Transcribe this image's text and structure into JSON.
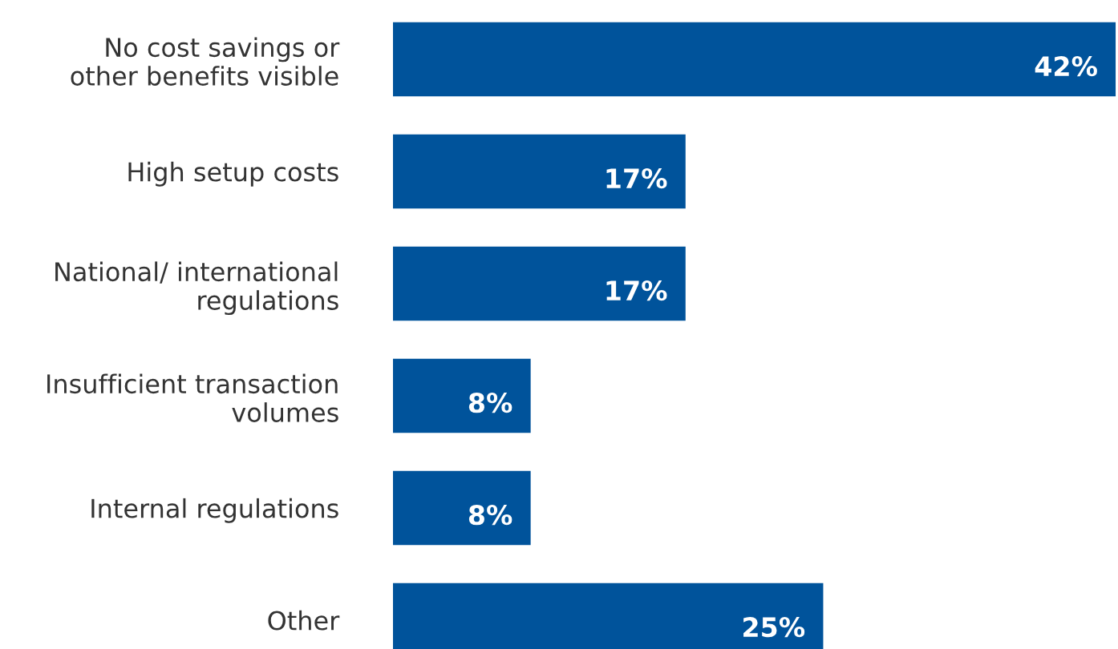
{
  "chart_data": {
    "type": "bar",
    "orientation": "horizontal",
    "categories": [
      "No cost savings or\nother benefits visible",
      "High setup costs",
      "National/ international\nregulations",
      "Insufficient transaction\nvolumes",
      "Internal regulations",
      "Other"
    ],
    "values": [
      42,
      17,
      17,
      8,
      8,
      25
    ],
    "value_labels": [
      "42%",
      "17%",
      "17%",
      "8%",
      "8%",
      "25%"
    ],
    "color": "#00539b",
    "grid": false,
    "legend": false
  }
}
